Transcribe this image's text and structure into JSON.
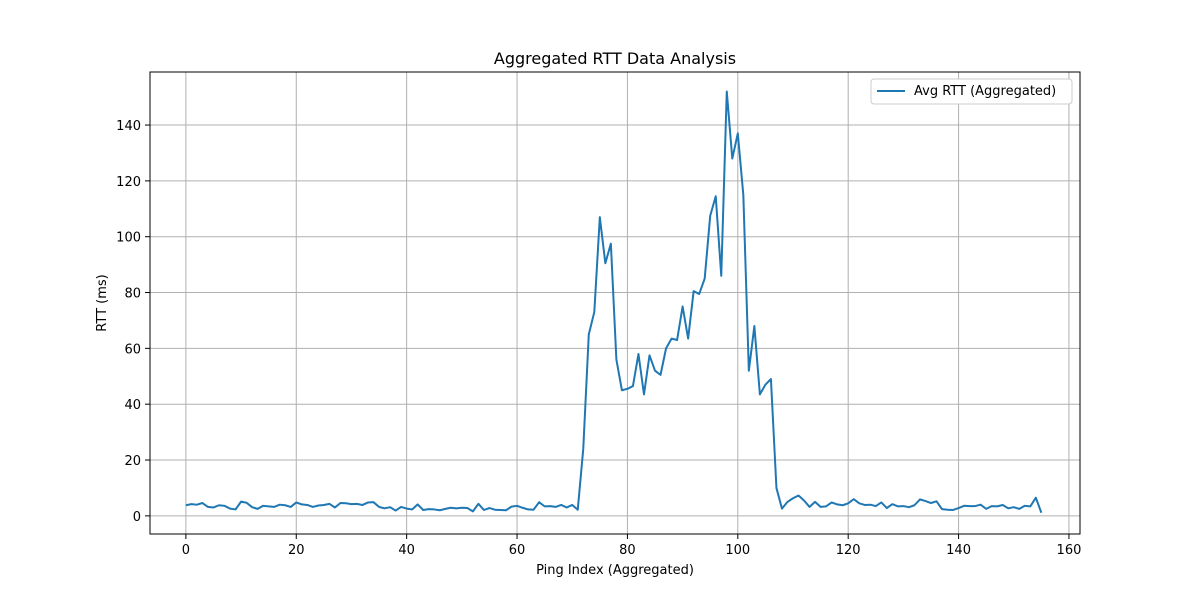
{
  "chart_data": {
    "type": "line",
    "title": "Aggregated RTT Data Analysis",
    "xlabel": "Ping Index (Aggregated)",
    "ylabel": "RTT (ms)",
    "xlim": [
      -6.5,
      162
    ],
    "ylim": [
      -6.5,
      159
    ],
    "xticks": [
      0,
      20,
      40,
      60,
      80,
      100,
      120,
      140,
      160
    ],
    "yticks": [
      0,
      20,
      40,
      60,
      80,
      100,
      120,
      140
    ],
    "grid": true,
    "legend_position": "top-right",
    "series": [
      {
        "name": "Avg RTT (Aggregated)",
        "color": "#1f77b4",
        "x": [
          0,
          1,
          2,
          3,
          4,
          5,
          6,
          7,
          8,
          9,
          10,
          11,
          12,
          13,
          14,
          15,
          16,
          17,
          18,
          19,
          20,
          21,
          22,
          23,
          24,
          25,
          26,
          27,
          28,
          29,
          30,
          31,
          32,
          33,
          34,
          35,
          36,
          37,
          38,
          39,
          40,
          41,
          42,
          43,
          44,
          45,
          46,
          47,
          48,
          49,
          50,
          51,
          52,
          53,
          54,
          55,
          56,
          57,
          58,
          59,
          60,
          61,
          62,
          63,
          64,
          65,
          66,
          67,
          68,
          69,
          70,
          71,
          72,
          73,
          74,
          75,
          76,
          77,
          78,
          79,
          80,
          81,
          82,
          83,
          84,
          85,
          86,
          87,
          88,
          89,
          90,
          91,
          92,
          93,
          94,
          95,
          96,
          97,
          98,
          99,
          100,
          101,
          102,
          103,
          104,
          105,
          106,
          107,
          108,
          109,
          110,
          111,
          112,
          113,
          114,
          115,
          116,
          117,
          118,
          119,
          120,
          121,
          122,
          123,
          124,
          125,
          126,
          127,
          128,
          129,
          130,
          131,
          132,
          133,
          134,
          135,
          136,
          137,
          138,
          139,
          140,
          141,
          142,
          143,
          144,
          145,
          146,
          147,
          148,
          149,
          150,
          151,
          152,
          153,
          154,
          155
        ],
        "values": [
          3.8,
          4.2,
          4.0,
          4.6,
          3.2,
          3.0,
          3.8,
          3.6,
          2.6,
          2.3,
          5.1,
          4.7,
          3.1,
          2.5,
          3.6,
          3.4,
          3.2,
          4.0,
          3.8,
          3.2,
          4.8,
          4.1,
          3.9,
          3.2,
          3.7,
          3.9,
          4.3,
          3.0,
          4.6,
          4.5,
          4.2,
          4.3,
          3.9,
          4.8,
          4.9,
          3.2,
          2.7,
          3.1,
          1.9,
          3.2,
          2.6,
          2.3,
          4.1,
          2.1,
          2.4,
          2.3,
          2.0,
          2.5,
          2.9,
          2.7,
          2.9,
          2.8,
          1.6,
          4.3,
          2.1,
          2.8,
          2.2,
          2.1,
          2.0,
          3.3,
          3.6,
          2.9,
          2.3,
          2.2,
          4.9,
          3.4,
          3.5,
          3.2,
          3.9,
          3.0,
          3.9,
          2.2,
          24,
          65,
          73,
          107,
          90.5,
          97.5,
          56,
          45,
          45.5,
          46.5,
          58,
          43.5,
          57.5,
          52,
          50.5,
          60,
          63.5,
          63,
          75,
          63.5,
          80.5,
          79.5,
          85,
          107.5,
          114.5,
          86,
          152,
          128,
          137,
          115,
          52,
          68,
          43.5,
          47,
          49,
          10,
          2.6,
          5,
          6.3,
          7.3,
          5.5,
          3.2,
          5,
          3.2,
          3.4,
          4.8,
          4.1,
          3.8,
          4.5,
          6.0,
          4.5,
          3.9,
          4.0,
          3.5,
          4.8,
          2.8,
          4.2,
          3.4,
          3.5,
          3.1,
          3.8,
          5.9,
          5.3,
          4.6,
          5.2,
          2.4,
          2.2,
          2.1,
          2.8,
          3.6,
          3.5,
          3.5,
          4.0,
          2.5,
          3.5,
          3.4,
          3.9,
          2.7,
          3.1,
          2.5,
          3.6,
          3.4,
          6.5,
          1.1
        ]
      }
    ]
  }
}
